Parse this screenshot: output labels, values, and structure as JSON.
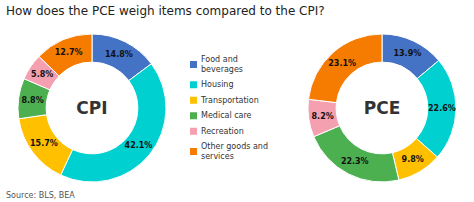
{
  "chart_data": {
    "type": "donut",
    "title": "How does the PCE weigh items compared to the CPI?",
    "source": "Source: BLS, BEA",
    "categories": [
      "Food and\nbeverages",
      "Housing",
      "Transportation",
      "Medical care",
      "Recreation",
      "Other goods and\nservices"
    ],
    "colors": [
      "#4472c4",
      "#00d0d0",
      "#ffc000",
      "#4caf50",
      "#f4a0b0",
      "#f57c00"
    ],
    "series": [
      {
        "name": "CPI",
        "values": [
          14.8,
          42.1,
          15.7,
          8.8,
          5.8,
          12.7
        ],
        "value_labels": [
          "14.8%",
          "42.1%",
          "15.7%",
          "8.8%",
          "5.8%",
          "12.7%"
        ]
      },
      {
        "name": "PCE",
        "values": [
          13.9,
          22.6,
          9.8,
          22.3,
          8.2,
          23.1
        ],
        "value_labels": [
          "13.9%",
          "22.6%",
          "9.8%",
          "22.3%",
          "8.2%",
          "23.1%"
        ]
      }
    ],
    "data_labels": true,
    "legend": "center"
  }
}
